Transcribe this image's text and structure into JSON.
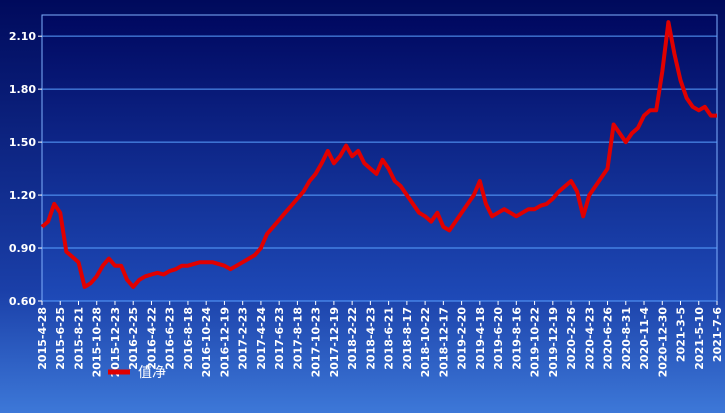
{
  "chart_data": {
    "type": "line",
    "categories": [
      "2015-4-28",
      null,
      null,
      "2015-6-25",
      null,
      null,
      "2015-8-21",
      null,
      null,
      "2015-10-28",
      null,
      null,
      "2015-12-23",
      null,
      null,
      "2016-2-25",
      null,
      null,
      "2016-4-22",
      null,
      null,
      "2016-6-23",
      null,
      null,
      "2016-8-18",
      null,
      null,
      "2016-10-24",
      null,
      null,
      "2016-12-19",
      null,
      null,
      "2017-2-23",
      null,
      null,
      "2017-4-24",
      null,
      null,
      "2017-6-23",
      null,
      null,
      "2017-8-18",
      null,
      null,
      "2017-10-23",
      null,
      null,
      "2017-12-19",
      null,
      null,
      "2018-2-22",
      null,
      null,
      "2018-4-23",
      null,
      null,
      "2018-6-21",
      null,
      null,
      "2018-8-17",
      null,
      null,
      "2018-10-22",
      null,
      null,
      "2018-12-17",
      null,
      null,
      "2019-2-20",
      null,
      null,
      "2019-4-18",
      null,
      null,
      "2019-6-20",
      null,
      null,
      "2019-8-16",
      null,
      null,
      "2019-10-22",
      null,
      null,
      "2019-12-19",
      null,
      null,
      "2020-2-26",
      null,
      null,
      "2020-4-23",
      null,
      null,
      "2020-6-26",
      null,
      null,
      "2020-8-31",
      null,
      null,
      "2020-11-4",
      null,
      null,
      "2020-12-30",
      null,
      null,
      "2021-3-5",
      null,
      null,
      "2021-5-10",
      null,
      null,
      "2021-7-6"
    ],
    "series": [
      {
        "name": "值净",
        "color": "#e00000",
        "values": [
          1.02,
          1.05,
          1.15,
          1.1,
          0.88,
          0.85,
          0.82,
          0.68,
          0.7,
          0.74,
          0.8,
          0.84,
          0.8,
          0.8,
          0.72,
          0.68,
          0.72,
          0.74,
          0.75,
          0.76,
          0.75,
          0.77,
          0.78,
          0.8,
          0.8,
          0.81,
          0.82,
          0.82,
          0.82,
          0.81,
          0.8,
          0.78,
          0.8,
          0.82,
          0.84,
          0.86,
          0.9,
          0.98,
          1.02,
          1.06,
          1.1,
          1.14,
          1.18,
          1.22,
          1.28,
          1.32,
          1.38,
          1.45,
          1.38,
          1.42,
          1.48,
          1.42,
          1.45,
          1.38,
          1.35,
          1.32,
          1.4,
          1.35,
          1.28,
          1.25,
          1.2,
          1.15,
          1.1,
          1.08,
          1.05,
          1.1,
          1.02,
          1.0,
          1.05,
          1.1,
          1.15,
          1.2,
          1.28,
          1.15,
          1.08,
          1.1,
          1.12,
          1.1,
          1.08,
          1.1,
          1.12,
          1.12,
          1.14,
          1.15,
          1.18,
          1.22,
          1.25,
          1.28,
          1.22,
          1.08,
          1.2,
          1.25,
          1.3,
          1.35,
          1.6,
          1.55,
          1.5,
          1.55,
          1.58,
          1.65,
          1.68,
          1.68,
          1.9,
          2.18,
          2.0,
          1.85,
          1.75,
          1.7,
          1.68,
          1.7,
          1.65,
          1.65
        ]
      }
    ],
    "ylim": [
      0.6,
      2.22
    ],
    "yticks": [
      {
        "value": 0.6,
        "label": "0.60"
      },
      {
        "value": 0.9,
        "label": "0.90"
      },
      {
        "value": 1.2,
        "label": "1.20"
      },
      {
        "value": 1.5,
        "label": "1.50"
      },
      {
        "value": 1.8,
        "label": "1.80"
      },
      {
        "value": 2.1,
        "label": "2.10"
      }
    ],
    "grid": true
  }
}
